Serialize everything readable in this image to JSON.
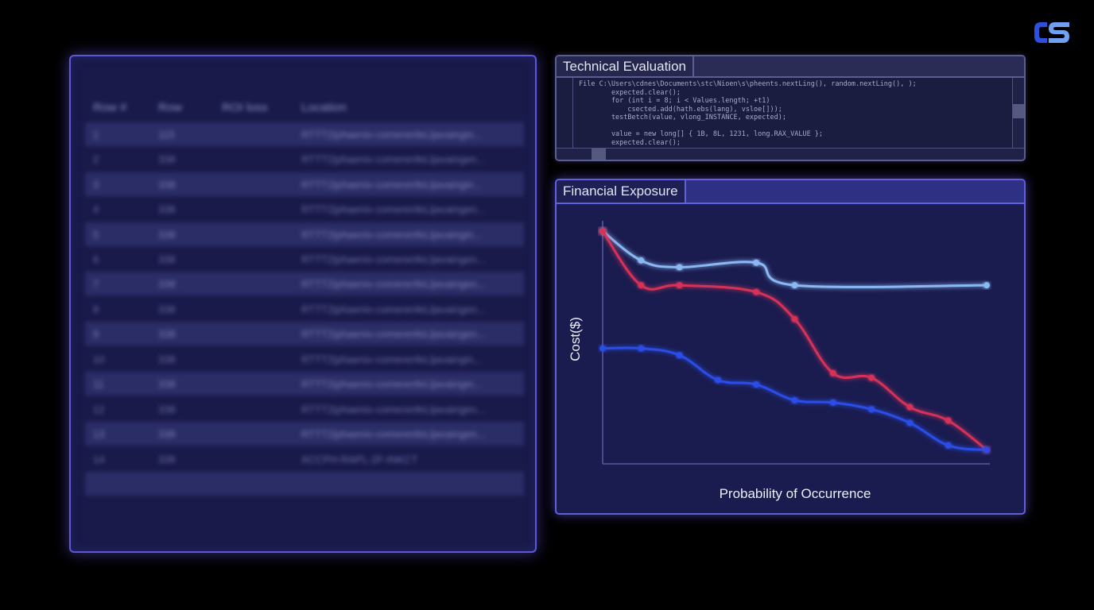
{
  "logo": {
    "text": "CS",
    "color": "#2f4fe0"
  },
  "table_panel": {
    "headers": [
      "Row #",
      "Row",
      "ROI loss",
      "Location"
    ],
    "rows": [
      {
        "n": "1",
        "v": "115",
        "loc": "RTTT2|phaenix-comerenfeLljavaingin..."
      },
      {
        "n": "2",
        "v": "338",
        "loc": "RTTT2|phaenix-comerenfeLljavaingen..."
      },
      {
        "n": "3",
        "v": "338",
        "loc": "RTTT2|phaenix-comerenfeLljavaingin..."
      },
      {
        "n": "4",
        "v": "338",
        "loc": "RTTT2|phaenix-comerenfeLljavaingen..."
      },
      {
        "n": "5",
        "v": "338",
        "loc": "RTTT2|phaenix-comerenfeLljavaingin..."
      },
      {
        "n": "6",
        "v": "338",
        "loc": "RTTT2|phaenix-comerenfeLljavaingen..."
      },
      {
        "n": "7",
        "v": "338",
        "loc": "RTTT2|phaenix-comerenfeLljavaingen..."
      },
      {
        "n": "8",
        "v": "338",
        "loc": "RTTT2|phaenix-comerenfeLljavaingen..."
      },
      {
        "n": "9",
        "v": "338",
        "loc": "RTTT2|phaenix-comerenfeLljavaingen..."
      },
      {
        "n": "10",
        "v": "338",
        "loc": "RTTT2|phaenix-comerenfeLljavaingin..."
      },
      {
        "n": "11",
        "v": "338",
        "loc": "RTTT2|phaenix-comerenfeLljavaingin..."
      },
      {
        "n": "12",
        "v": "338",
        "loc": "RTTT2|phaenix-comerenfeLljavaingen..."
      },
      {
        "n": "13",
        "v": "338",
        "loc": "RTTT2|phaenix-comerenfeLljavaingen..."
      },
      {
        "n": "14",
        "v": "338",
        "loc": "ACCPH-RAPL-2F-INKCT"
      }
    ]
  },
  "tech_panel": {
    "title": "Technical Evaluation",
    "code_lines": [
      "File C:\\Users\\cdnes\\Documents\\stc\\Nioen\\s\\pheents.nextLing(), random.nextLing(), );",
      "        expected.clear();",
      "        for (int i = 8; i < Values.length; +t1)",
      "            csected.add(hath.ebs(lang), vsloe[]));",
      "        testBetch(value, vlong_INSTANCE, expected);",
      "",
      "        value = new long[] { 1B, 8L, 1231, long.RAX_VALUE };",
      "        expected.clear();"
    ]
  },
  "fin_panel": {
    "title": "Financial Exposure"
  },
  "chart_data": {
    "type": "line",
    "title": "Financial Exposure",
    "xlabel": "Probability of Occurrence",
    "ylabel": "Cost($)",
    "grid": false,
    "x": [
      0,
      1,
      2,
      3,
      4,
      5,
      6,
      7,
      8,
      9,
      10
    ],
    "ylim": [
      0,
      100
    ],
    "series": [
      {
        "color": "#8ab8f2",
        "x": [
          0,
          1,
          2,
          4,
          5,
          10
        ],
        "values": [
          100,
          87,
          84,
          86,
          76,
          76
        ]
      },
      {
        "color": "#d43158",
        "x": [
          0,
          1,
          2,
          4,
          5,
          6,
          7,
          8,
          9,
          10
        ],
        "values": [
          100,
          76,
          76,
          73,
          61,
          37,
          35,
          22,
          16,
          3
        ]
      },
      {
        "color": "#2b4de8",
        "x": [
          0,
          1,
          2,
          3,
          4,
          5,
          6,
          7,
          8,
          9,
          10
        ],
        "values": [
          48,
          48,
          45,
          34,
          32,
          25,
          24,
          21,
          15,
          5,
          3
        ]
      }
    ]
  }
}
